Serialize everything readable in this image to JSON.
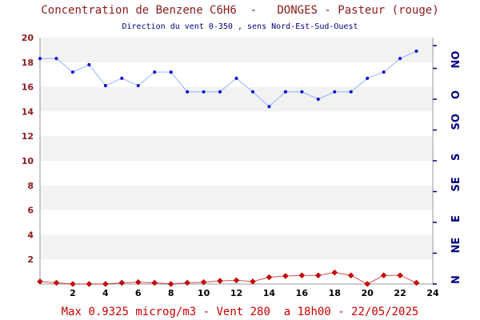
{
  "chart_data": {
    "type": "line",
    "title": "Concentration de Benzene C6H6  -   DONGES - Pasteur (rouge)",
    "subtitle": "Direction du vent 0-350 , sens Nord-Est-Sud-Ouest",
    "footer": "Max 0.9325 microg/m3 - Vent 280  a 18h00 - 22/05/2025",
    "x_ticks": [
      2,
      4,
      6,
      8,
      10,
      12,
      14,
      16,
      18,
      20,
      22,
      24
    ],
    "xlim": [
      0,
      24
    ],
    "y_ticks": [
      2,
      4,
      6,
      8,
      10,
      12,
      14,
      16,
      18,
      20
    ],
    "ylim": [
      0,
      20
    ],
    "direction_labels": [
      "N",
      "NE",
      "E",
      "SE",
      "S",
      "SO",
      "O",
      "NO"
    ],
    "grid": "alternating horizontal bands",
    "series": [
      {
        "color": "#cc0000",
        "marker": "diamond",
        "x": [
          0,
          1,
          2,
          3,
          4,
          5,
          6,
          7,
          8,
          9,
          10,
          11,
          12,
          13,
          14,
          15,
          16,
          17,
          18,
          19,
          20,
          21,
          22,
          23
        ],
        "values": [
          0.2,
          0.1,
          0.0,
          0.0,
          0.0,
          0.1,
          0.15,
          0.1,
          0.0,
          0.1,
          0.15,
          0.25,
          0.3,
          0.2,
          0.55,
          0.65,
          0.7,
          0.7,
          0.93,
          0.7,
          0.0,
          0.7,
          0.7,
          0.1
        ]
      },
      {
        "color": "#0000cc",
        "line_color": "#6699ff",
        "marker": "dot",
        "x": [
          0,
          1,
          2,
          3,
          4,
          5,
          6,
          7,
          8,
          9,
          10,
          11,
          12,
          13,
          14,
          15,
          16,
          17,
          18,
          19,
          20,
          21,
          22,
          23
        ],
        "values": [
          18.3,
          18.3,
          17.2,
          17.8,
          16.1,
          16.7,
          16.1,
          17.2,
          17.2,
          15.6,
          15.6,
          15.6,
          16.7,
          15.6,
          14.4,
          15.6,
          15.6,
          15.0,
          15.6,
          15.6,
          16.7,
          17.2,
          18.3,
          18.9
        ]
      }
    ]
  }
}
